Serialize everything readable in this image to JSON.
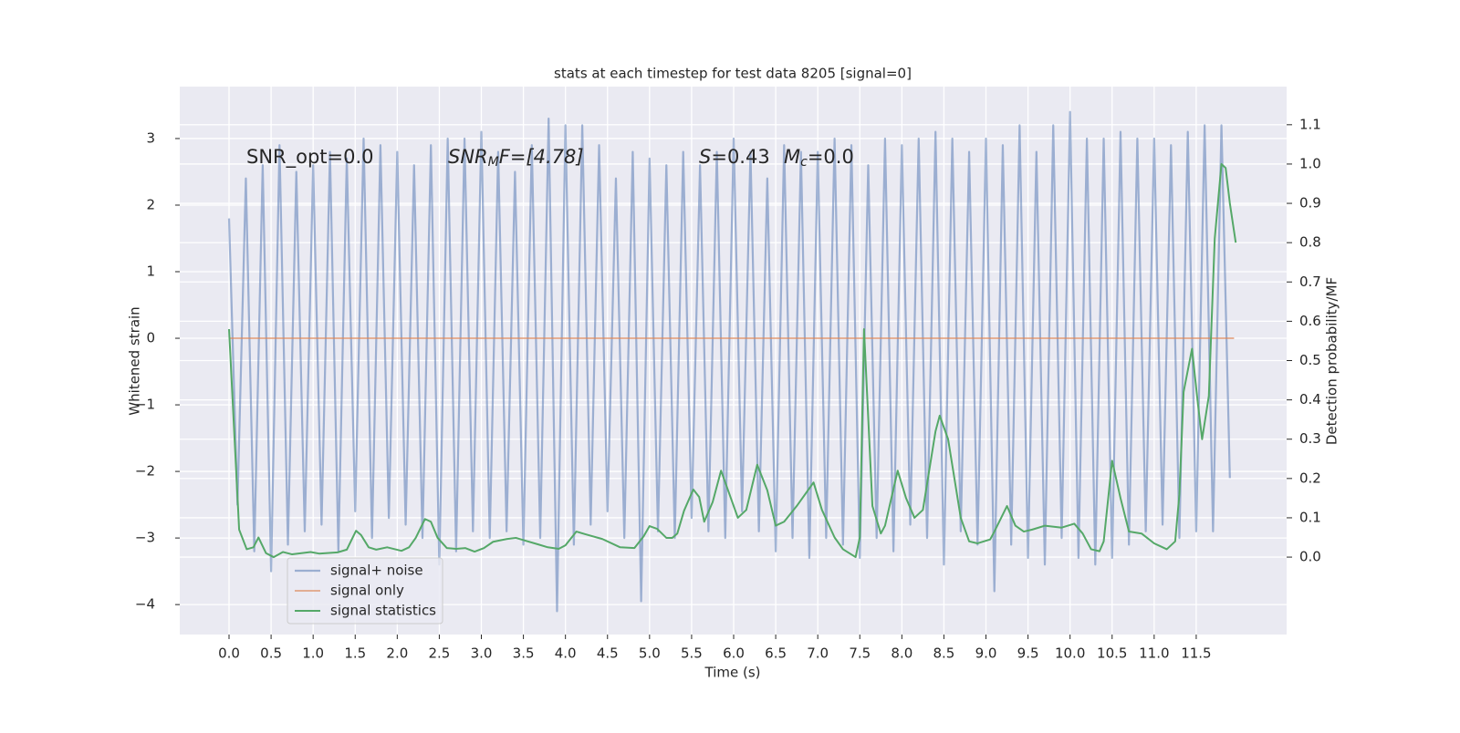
{
  "chart_data": {
    "type": "line",
    "title": "stats at each timestep for test data 8205 [signal=0]",
    "xlabel": "Time (s)",
    "ylabel": "Whitened strain",
    "y2label": "Detection probability/MF",
    "annotations": [
      [
        "SNR_opt=0.0"
      ],
      [
        "SNR",
        "M",
        "F=[4.78]"
      ],
      [
        "S",
        "=0.43"
      ],
      [
        "M",
        "c",
        "=0.0"
      ]
    ],
    "xlim": [
      -0.586,
      12.575
    ],
    "ylim": [
      -4.45,
      3.78
    ],
    "y2lim": [
      -0.197,
      1.197
    ],
    "xticks": [
      {
        "value": 0,
        "label": "0.0"
      },
      {
        "value": 0.5,
        "label": "0.5"
      },
      {
        "value": 1,
        "label": "1.0"
      },
      {
        "value": 1.5,
        "label": "1.5"
      },
      {
        "value": 2,
        "label": "2.0"
      },
      {
        "value": 2.5,
        "label": "2.5"
      },
      {
        "value": 3,
        "label": "3.0"
      },
      {
        "value": 3.5,
        "label": "3.5"
      },
      {
        "value": 4,
        "label": "4.0"
      },
      {
        "value": 4.5,
        "label": "4.5"
      },
      {
        "value": 5,
        "label": "5.0"
      },
      {
        "value": 5.5,
        "label": "5.5"
      },
      {
        "value": 6,
        "label": "6.0"
      },
      {
        "value": 6.5,
        "label": "6.5"
      },
      {
        "value": 7,
        "label": "7.0"
      },
      {
        "value": 7.5,
        "label": "7.5"
      },
      {
        "value": 8,
        "label": "8.0"
      },
      {
        "value": 8.5,
        "label": "8.5"
      },
      {
        "value": 9,
        "label": "9.0"
      },
      {
        "value": 9.5,
        "label": "9.5"
      },
      {
        "value": 10,
        "label": "10.0"
      },
      {
        "value": 10.5,
        "label": "10.5"
      },
      {
        "value": 11,
        "label": "11.0"
      },
      {
        "value": 11.5,
        "label": "11.5"
      }
    ],
    "yticks": [
      {
        "value": -4,
        "label": "−4"
      },
      {
        "value": -3,
        "label": "−3"
      },
      {
        "value": -2,
        "label": "−2"
      },
      {
        "value": -1,
        "label": "−1"
      },
      0,
      1,
      2,
      3
    ],
    "y2ticks": [
      {
        "value": 0,
        "label": "0.0"
      },
      {
        "value": 0.1,
        "label": "0.1"
      },
      {
        "value": 0.2,
        "label": "0.2"
      },
      {
        "value": 0.3,
        "label": "0.3"
      },
      {
        "value": 0.4,
        "label": "0.4"
      },
      {
        "value": 0.5,
        "label": "0.5"
      },
      {
        "value": 0.6,
        "label": "0.6"
      },
      {
        "value": 0.7,
        "label": "0.7"
      },
      {
        "value": 0.8,
        "label": "0.8"
      },
      {
        "value": 0.9,
        "label": "0.9"
      },
      {
        "value": 1.0,
        "label": "1.0"
      },
      {
        "value": 1.1,
        "label": "1.1"
      }
    ],
    "grid": true,
    "legend": "lower left",
    "series": [
      {
        "name": "signal+ noise",
        "color": "#4c72b0",
        "x": [
          0,
          0.1,
          0.2,
          0.3,
          0.4,
          0.5,
          0.6,
          0.7,
          0.8,
          0.9,
          1,
          1.1,
          1.2,
          1.3,
          1.4,
          1.5,
          1.6,
          1.7,
          1.8,
          1.9,
          2,
          2.1,
          2.2,
          2.3,
          2.4,
          2.5,
          2.6,
          2.7,
          2.8,
          2.9,
          3,
          3.1,
          3.2,
          3.3,
          3.4,
          3.5,
          3.6,
          3.7,
          3.8,
          3.9,
          4,
          4.1,
          4.2,
          4.3,
          4.4,
          4.5,
          4.6,
          4.7,
          4.8,
          4.9,
          5,
          5.1,
          5.2,
          5.3,
          5.4,
          5.5,
          5.6,
          5.7,
          5.8,
          5.9,
          6,
          6.1,
          6.2,
          6.3,
          6.4,
          6.5,
          6.6,
          6.7,
          6.8,
          6.9,
          7,
          7.1,
          7.2,
          7.3,
          7.4,
          7.5,
          7.6,
          7.7,
          7.8,
          7.9,
          8,
          8.1,
          8.2,
          8.3,
          8.4,
          8.5,
          8.6,
          8.7,
          8.8,
          8.9,
          9,
          9.1,
          9.2,
          9.3,
          9.4,
          9.5,
          9.6,
          9.7,
          9.8,
          9.9,
          10,
          10.1,
          10.2,
          10.3,
          10.4,
          10.5,
          10.6,
          10.7,
          10.8,
          10.9,
          11,
          11.1,
          11.2,
          11.3,
          11.4,
          11.5,
          11.6,
          11.7,
          11.8,
          11.9
        ],
        "values": [
          1.8,
          -2.5,
          2.4,
          -3.2,
          2.6,
          -3.5,
          2.9,
          -3.1,
          2.5,
          -2.9,
          2.6,
          -2.8,
          2.8,
          -3.2,
          2.7,
          -2.6,
          3.0,
          -3.0,
          2.9,
          -2.7,
          2.8,
          -2.8,
          2.6,
          -3.0,
          2.9,
          -3.4,
          3.0,
          -3.2,
          3.0,
          -2.9,
          3.1,
          -3.0,
          2.8,
          -2.9,
          2.5,
          -3.1,
          2.9,
          -3.0,
          3.3,
          -4.1,
          3.2,
          -3.1,
          3.2,
          -2.8,
          2.9,
          -2.6,
          2.4,
          -3.0,
          2.8,
          -3.95,
          2.7,
          -2.9,
          2.6,
          -3.0,
          2.8,
          -2.7,
          2.6,
          -2.9,
          2.8,
          -3.0,
          3.0,
          -2.6,
          2.8,
          -2.9,
          2.4,
          -3.2,
          2.9,
          -3.0,
          2.8,
          -3.3,
          2.8,
          -3.0,
          3.0,
          -3.1,
          2.9,
          -3.3,
          2.6,
          -3.0,
          3.0,
          -3.2,
          2.9,
          -2.8,
          3.0,
          -3.0,
          3.1,
          -3.4,
          3.0,
          -2.9,
          2.8,
          -3.1,
          3.0,
          -3.8,
          2.9,
          -3.1,
          3.2,
          -3.3,
          2.8,
          -3.4,
          3.2,
          -3.0,
          3.4,
          -3.3,
          3.0,
          -3.4,
          3.0,
          -3.3,
          3.1,
          -3.1,
          3.0,
          -2.9,
          3.0,
          -2.8,
          2.9,
          -3.0,
          3.1,
          -2.9,
          3.2,
          -2.9,
          3.2,
          -2.1
        ]
      },
      {
        "name": "signal only",
        "color": "#dd8452",
        "x": [
          0,
          11.95
        ],
        "values": [
          0,
          0
        ]
      },
      {
        "name": "signal statistics",
        "color": "#55a868",
        "axis": "y2",
        "x": [
          0,
          0.12,
          0.21,
          0.29,
          0.35,
          0.44,
          0.53,
          0.64,
          0.75,
          0.97,
          1.07,
          1.29,
          1.4,
          1.51,
          1.57,
          1.66,
          1.75,
          1.88,
          2.05,
          2.14,
          2.22,
          2.33,
          2.4,
          2.48,
          2.59,
          2.7,
          2.81,
          2.92,
          3.03,
          3.14,
          3.3,
          3.41,
          3.52,
          3.68,
          3.79,
          3.92,
          4.0,
          4.13,
          4.24,
          4.44,
          4.65,
          4.82,
          4.93,
          5.0,
          5.09,
          5.2,
          5.27,
          5.33,
          5.41,
          5.52,
          5.59,
          5.65,
          5.75,
          5.85,
          5.95,
          6.05,
          6.15,
          6.28,
          6.4,
          6.5,
          6.6,
          6.75,
          6.95,
          7.05,
          7.2,
          7.3,
          7.45,
          7.5,
          7.55,
          7.65,
          7.75,
          7.8,
          7.95,
          8.05,
          8.15,
          8.25,
          8.4,
          8.45,
          8.55,
          8.7,
          8.8,
          8.9,
          9.05,
          9.1,
          9.25,
          9.35,
          9.45,
          9.55,
          9.7,
          9.9,
          10.05,
          10.15,
          10.25,
          10.35,
          10.4,
          10.5,
          10.6,
          10.7,
          10.85,
          11.0,
          11.15,
          11.25,
          11.3,
          11.35,
          11.45,
          11.52,
          11.57,
          11.65,
          11.72,
          11.8,
          11.85,
          11.9,
          11.97
        ],
        "values": [
          0.58,
          0.07,
          0.02,
          0.025,
          0.05,
          0.01,
          0.0,
          0.013,
          0.007,
          0.013,
          0.009,
          0.012,
          0.019,
          0.067,
          0.056,
          0.025,
          0.019,
          0.025,
          0.016,
          0.025,
          0.049,
          0.097,
          0.09,
          0.049,
          0.023,
          0.021,
          0.023,
          0.014,
          0.023,
          0.039,
          0.046,
          0.049,
          0.042,
          0.032,
          0.025,
          0.021,
          0.03,
          0.065,
          0.058,
          0.046,
          0.025,
          0.023,
          0.053,
          0.079,
          0.072,
          0.049,
          0.049,
          0.06,
          0.118,
          0.172,
          0.153,
          0.09,
          0.14,
          0.22,
          0.16,
          0.1,
          0.12,
          0.235,
          0.17,
          0.08,
          0.09,
          0.13,
          0.19,
          0.12,
          0.05,
          0.02,
          0.0,
          0.05,
          0.58,
          0.13,
          0.06,
          0.08,
          0.22,
          0.15,
          0.1,
          0.12,
          0.32,
          0.36,
          0.3,
          0.1,
          0.04,
          0.035,
          0.045,
          0.065,
          0.13,
          0.08,
          0.065,
          0.07,
          0.08,
          0.075,
          0.085,
          0.06,
          0.02,
          0.015,
          0.04,
          0.245,
          0.15,
          0.065,
          0.06,
          0.035,
          0.02,
          0.04,
          0.16,
          0.42,
          0.53,
          0.39,
          0.3,
          0.41,
          0.81,
          1.0,
          0.99,
          0.9,
          0.8
        ]
      }
    ]
  }
}
